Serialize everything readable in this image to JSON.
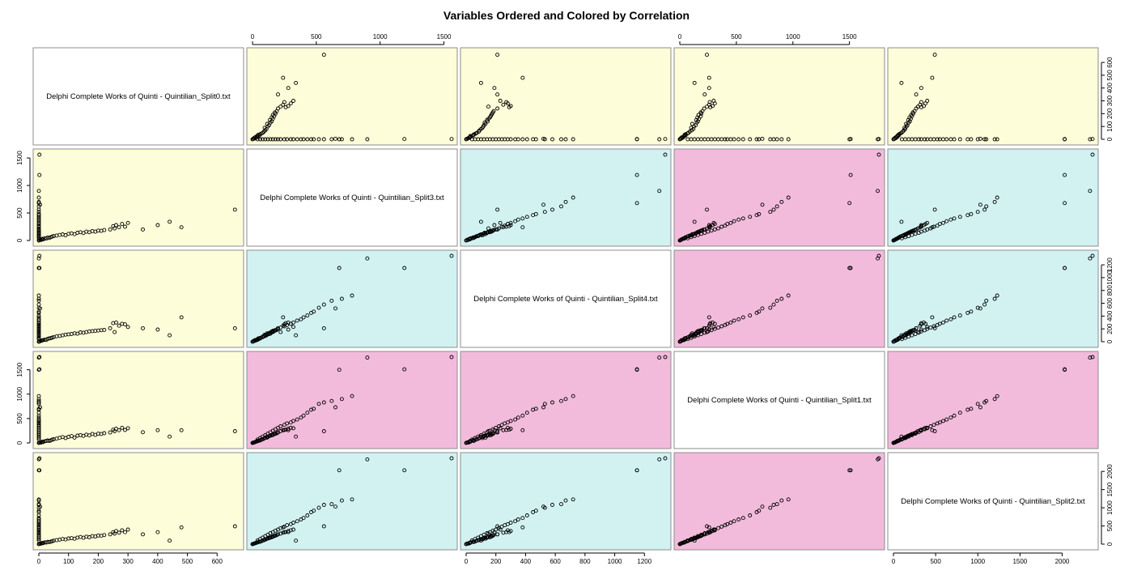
{
  "chart_data": {
    "type": "scatter",
    "subtype": "scatterplot-matrix",
    "title": "Variables Ordered and Colored by Correlation",
    "variables": [
      "Delphi Complete Works of Quinti - Quintilian_Split0.txt",
      "Delphi Complete Works of Quinti - Quintilian_Split3.txt",
      "Delphi Complete Works of Quinti - Quintilian_Split4.txt",
      "Delphi Complete Works of Quinti - Quintilian_Split1.txt",
      "Delphi Complete Works of Quinti - Quintilian_Split2.txt"
    ],
    "panel_colors": {
      "low": "#fdfdd9",
      "medium": "#d2f2f2",
      "high": "#f2bbdb",
      "diagonal": "#ffffff"
    },
    "panel_color_matrix": [
      [
        "diagonal",
        "low",
        "low",
        "low",
        "low"
      ],
      [
        "low",
        "diagonal",
        "medium",
        "high",
        "medium"
      ],
      [
        "low",
        "medium",
        "diagonal",
        "high",
        "medium"
      ],
      [
        "low",
        "high",
        "high",
        "diagonal",
        "high"
      ],
      [
        "low",
        "medium",
        "medium",
        "high",
        "diagonal"
      ]
    ],
    "axis_ranges": [
      [
        0,
        670
      ],
      [
        0,
        1560
      ],
      [
        0,
        1340
      ],
      [
        0,
        1760
      ],
      [
        0,
        2360
      ]
    ],
    "axis_ticks": [
      [
        "0",
        "100",
        "200",
        "300",
        "400",
        "500",
        "600"
      ],
      [
        "0",
        "500",
        "1000",
        "1500"
      ],
      [
        "0",
        "200",
        "400",
        "600",
        "800",
        "1000",
        "1200"
      ],
      [
        "0",
        "500",
        "1000",
        "1500"
      ],
      [
        "0",
        "500",
        "1000",
        "1500",
        "2000"
      ]
    ],
    "top_axis_columns": [
      1,
      3
    ],
    "bottom_axis_columns": [
      0,
      2,
      4
    ],
    "left_axis_rows": [
      1,
      3
    ],
    "right_axis_rows": [
      0,
      2,
      4
    ],
    "grid": false,
    "legend": "none",
    "points": [
      [
        0,
        0,
        0,
        0,
        0
      ],
      [
        2,
        5,
        3,
        4,
        6
      ],
      [
        5,
        15,
        10,
        12,
        18
      ],
      [
        8,
        10,
        14,
        9,
        13
      ],
      [
        12,
        30,
        22,
        26,
        35
      ],
      [
        15,
        20,
        25,
        18,
        27
      ],
      [
        20,
        40,
        30,
        35,
        48
      ],
      [
        25,
        35,
        28,
        40,
        45
      ],
      [
        30,
        55,
        45,
        50,
        62
      ],
      [
        35,
        45,
        50,
        42,
        58
      ],
      [
        40,
        60,
        55,
        52,
        70
      ],
      [
        45,
        70,
        65,
        68,
        80
      ],
      [
        50,
        80,
        72,
        75,
        95
      ],
      [
        60,
        90,
        85,
        88,
        110
      ],
      [
        70,
        100,
        90,
        105,
        125
      ],
      [
        80,
        110,
        100,
        120,
        140
      ],
      [
        90,
        95,
        110,
        100,
        130
      ],
      [
        100,
        120,
        115,
        125,
        155
      ],
      [
        110,
        130,
        120,
        140,
        165
      ],
      [
        120,
        115,
        130,
        110,
        150
      ],
      [
        130,
        140,
        125,
        150,
        180
      ],
      [
        140,
        150,
        145,
        160,
        195
      ],
      [
        150,
        135,
        140,
        145,
        175
      ],
      [
        160,
        160,
        150,
        170,
        205
      ],
      [
        170,
        150,
        160,
        155,
        190
      ],
      [
        180,
        170,
        165,
        185,
        220
      ],
      [
        190,
        160,
        170,
        165,
        210
      ],
      [
        200,
        180,
        175,
        190,
        235
      ],
      [
        210,
        175,
        180,
        185,
        230
      ],
      [
        220,
        190,
        185,
        200,
        250
      ],
      [
        240,
        200,
        210,
        215,
        270
      ],
      [
        250,
        260,
        290,
        270,
        330
      ],
      [
        255,
        220,
        150,
        240,
        290
      ],
      [
        260,
        280,
        300,
        290,
        360
      ],
      [
        270,
        240,
        250,
        260,
        315
      ],
      [
        280,
        300,
        280,
        310,
        380
      ],
      [
        290,
        250,
        270,
        265,
        330
      ],
      [
        300,
        320,
        230,
        300,
        400
      ],
      [
        350,
        200,
        210,
        220,
        270
      ],
      [
        400,
        280,
        190,
        260,
        330
      ],
      [
        440,
        340,
        100,
        130,
        95
      ],
      [
        480,
        240,
        380,
        260,
        460
      ],
      [
        660,
        560,
        210,
        240,
        490
      ],
      [
        0,
        900,
        1300,
        1750,
        2330
      ],
      [
        0,
        680,
        1150,
        1500,
        2030
      ],
      [
        0,
        780,
        720,
        960,
        1230
      ],
      [
        0,
        700,
        670,
        900,
        1200
      ],
      [
        0,
        620,
        640,
        860,
        1100
      ],
      [
        0,
        560,
        580,
        830,
        1080
      ],
      [
        0,
        520,
        530,
        800,
        1000
      ],
      [
        0,
        480,
        470,
        700,
        920
      ],
      [
        0,
        460,
        450,
        680,
        880
      ],
      [
        0,
        430,
        410,
        620,
        790
      ],
      [
        0,
        400,
        380,
        560,
        720
      ],
      [
        0,
        380,
        350,
        520,
        680
      ],
      [
        0,
        350,
        330,
        480,
        630
      ],
      [
        0,
        320,
        300,
        450,
        590
      ],
      [
        0,
        300,
        280,
        420,
        550
      ],
      [
        0,
        270,
        260,
        400,
        520
      ],
      [
        0,
        250,
        240,
        370,
        480
      ],
      [
        0,
        220,
        220,
        340,
        440
      ],
      [
        0,
        200,
        200,
        310,
        400
      ],
      [
        0,
        180,
        180,
        280,
        370
      ],
      [
        0,
        160,
        160,
        250,
        330
      ],
      [
        0,
        140,
        140,
        220,
        300
      ],
      [
        0,
        120,
        120,
        190,
        260
      ],
      [
        0,
        100,
        100,
        160,
        220
      ],
      [
        0,
        80,
        80,
        130,
        180
      ],
      [
        0,
        60,
        60,
        100,
        140
      ],
      [
        0,
        40,
        40,
        70,
        100
      ],
      [
        2,
        1560,
        1340,
        1760,
        2360
      ],
      [
        2,
        1190,
        1150,
        1510,
        2030
      ],
      [
        4,
        650,
        520,
        730,
        1030
      ]
    ]
  }
}
